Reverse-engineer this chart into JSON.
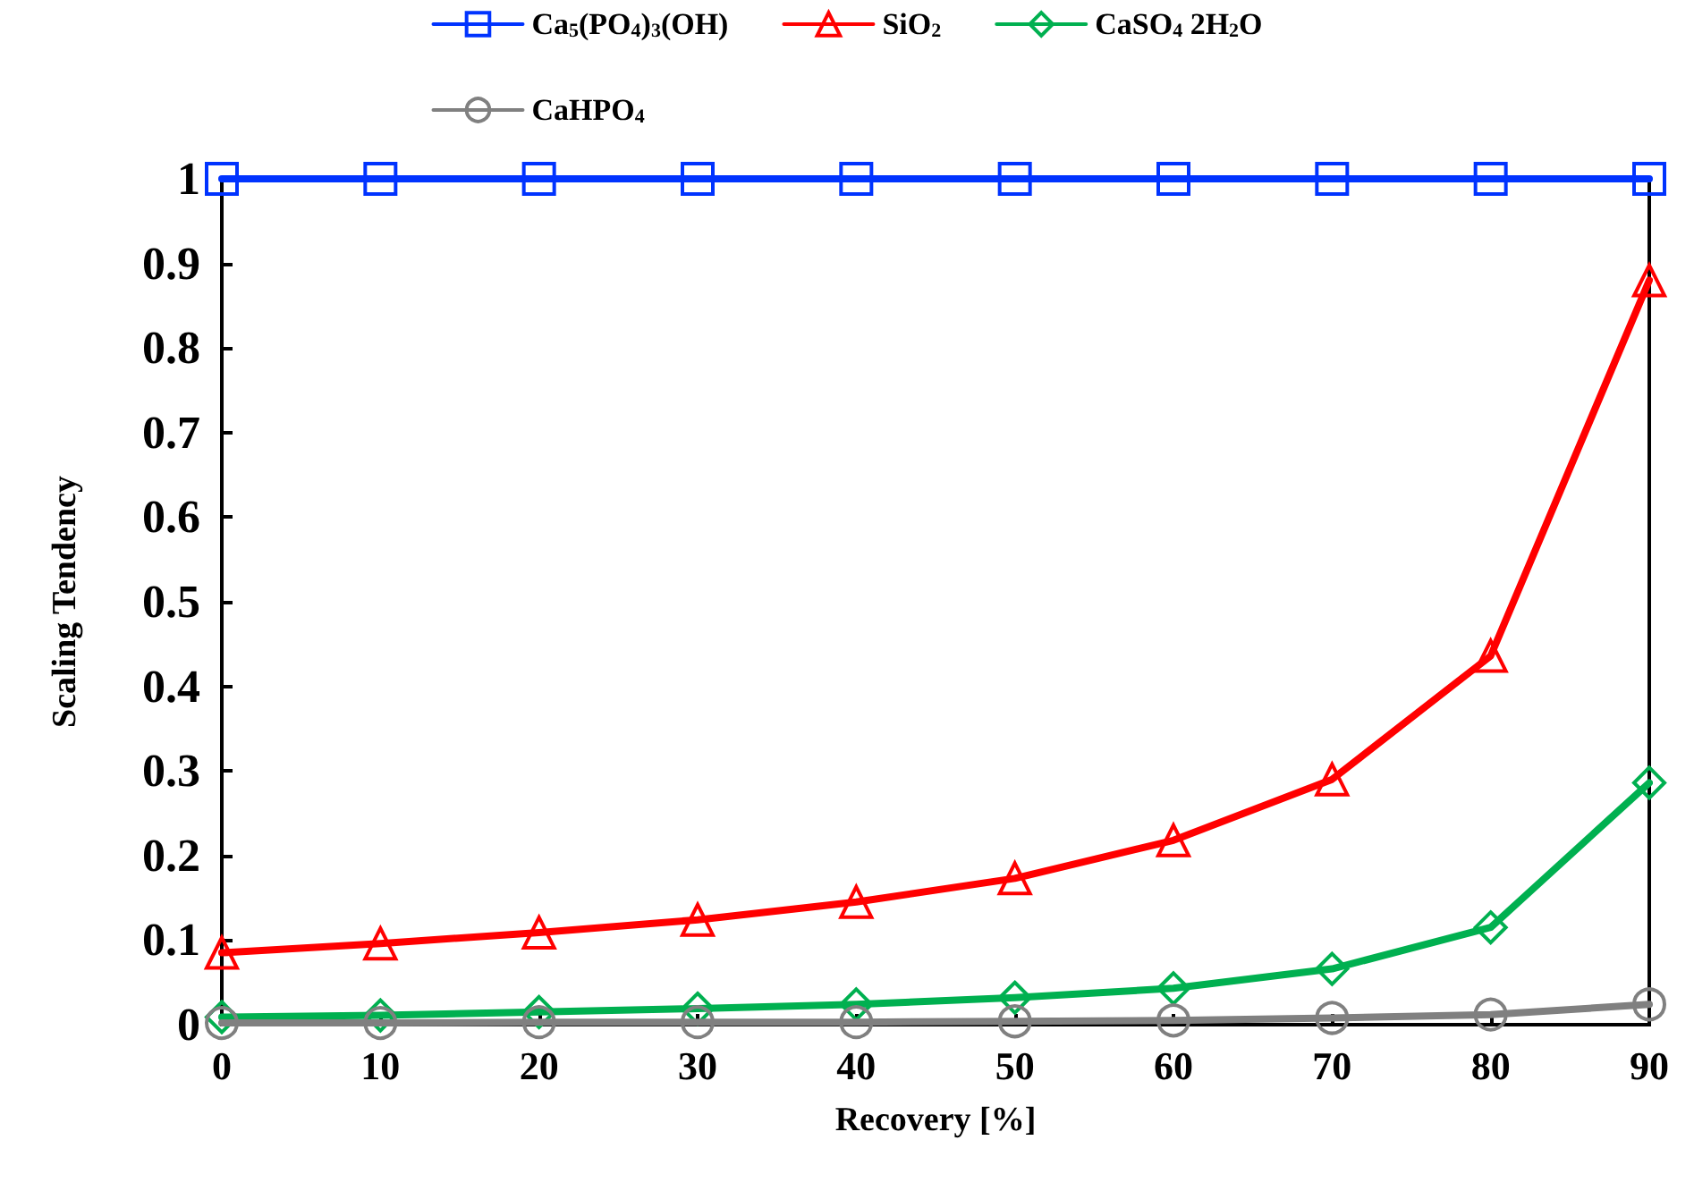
{
  "chart_data": {
    "type": "line",
    "xlabel": "Recovery [%]",
    "ylabel": "Scaling Tendency",
    "x": [
      0,
      10,
      20,
      30,
      40,
      50,
      60,
      70,
      80,
      90
    ],
    "series": [
      {
        "name": "Ca$_{5}$(PO$_{4}$)$_{3}$(OH)",
        "color": "#0033ff",
        "marker": "square",
        "values": [
          1,
          1,
          1,
          1,
          1,
          1,
          1,
          1,
          1,
          1
        ]
      },
      {
        "name": "SiO$_{2}$",
        "color": "#ff0000",
        "marker": "triangle",
        "values": [
          0.085,
          0.096,
          0.109,
          0.124,
          0.145,
          0.173,
          0.218,
          0.29,
          0.436,
          0.88
        ]
      },
      {
        "name": "CaSO$_{4}$ 2H$_{2}$O",
        "color": "#00b050",
        "marker": "diamond",
        "values": [
          0.009,
          0.011,
          0.015,
          0.019,
          0.024,
          0.032,
          0.043,
          0.066,
          0.115,
          0.286
        ]
      },
      {
        "name": "CaHPO$_{4}$",
        "color": "#808080",
        "marker": "circle",
        "values": [
          0.002,
          0.002,
          0.003,
          0.003,
          0.003,
          0.004,
          0.005,
          0.008,
          0.012,
          0.024
        ]
      }
    ],
    "xlim": [
      0,
      90
    ],
    "xticks": [
      0,
      10,
      20,
      30,
      40,
      50,
      60,
      70,
      80,
      90
    ],
    "ylim": [
      0,
      1
    ],
    "yticks": [
      0,
      0.1,
      0.2,
      0.3,
      0.4,
      0.5,
      0.6,
      0.7,
      0.8,
      0.9,
      1
    ],
    "grid": false,
    "legend": "top",
    "line_style": "solid"
  }
}
